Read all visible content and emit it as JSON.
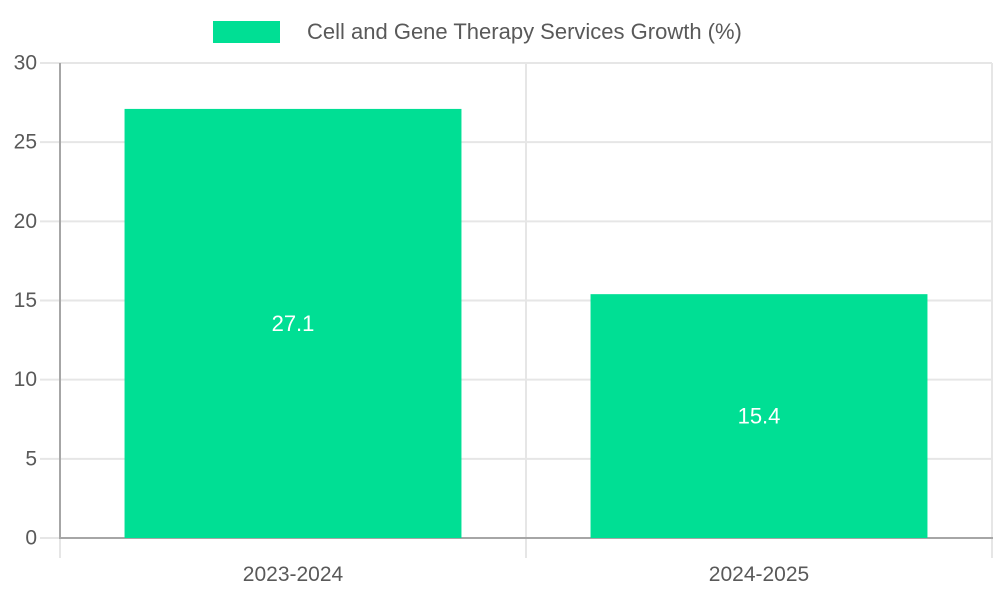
{
  "chart_data": {
    "type": "bar",
    "title": "Cell and Gene Therapy Services Growth (%)",
    "legend": {
      "entries": [
        "Cell and Gene Therapy Services Growth (%)"
      ],
      "position": "top"
    },
    "categories": [
      "2023-2024",
      "2024-2025"
    ],
    "series": [
      {
        "name": "Cell and Gene Therapy Services Growth (%)",
        "values": [
          27.1,
          15.4
        ]
      }
    ],
    "data_labels": [
      "27.1",
      "15.4"
    ],
    "xlabel": "",
    "ylabel": "",
    "ylim": [
      0,
      30
    ],
    "yticks": [
      0,
      5,
      10,
      15,
      20,
      25,
      30
    ],
    "grid": true,
    "style": {
      "bar_color": "#00DF94",
      "data_label_color": "#ffffff",
      "axis_line_color": "#a6a6a6",
      "grid_line_color": "#e6e6e6",
      "tick_label_color": "#595959",
      "legend_text_color": "#595959",
      "background_color": "#ffffff"
    }
  }
}
